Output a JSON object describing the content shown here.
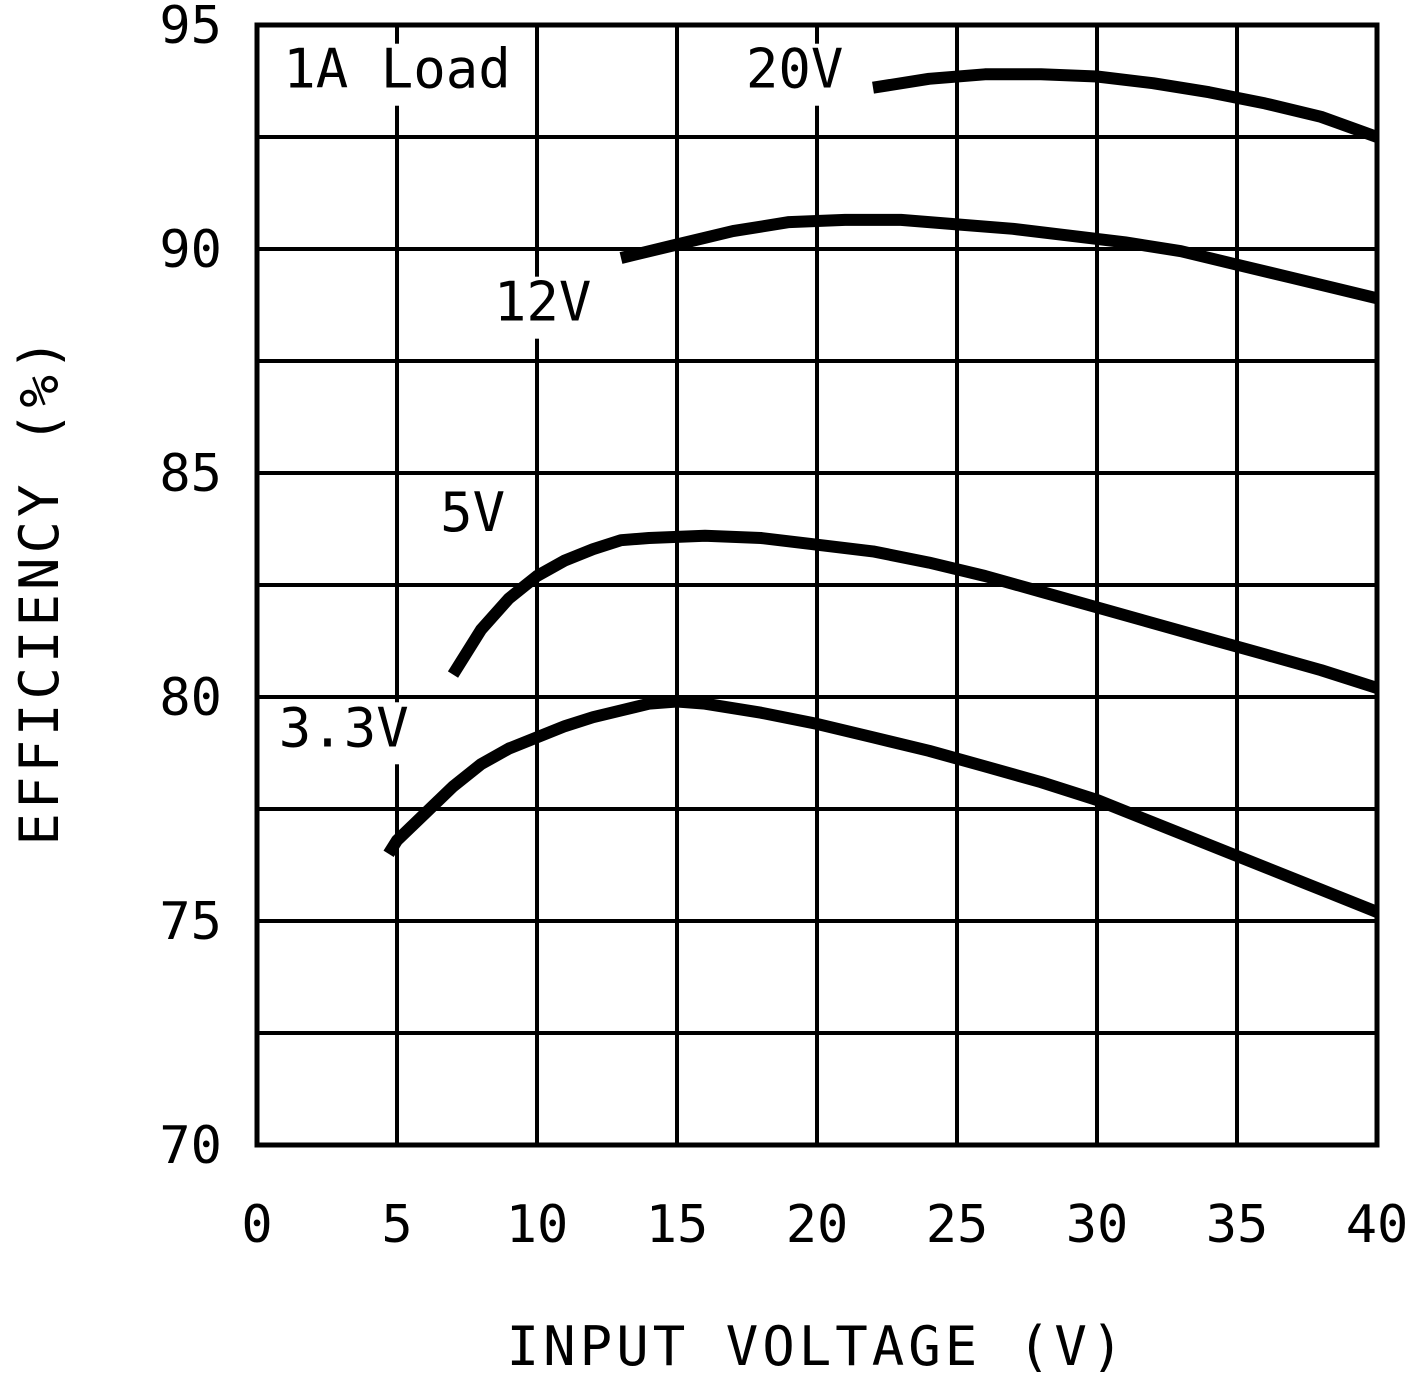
{
  "chart_data": {
    "type": "line",
    "xlabel": "INPUT VOLTAGE (V)",
    "ylabel": "EFFICIENCY (%)",
    "xlim": [
      0,
      40
    ],
    "ylim": [
      70,
      95
    ],
    "xticks": [
      0,
      5,
      10,
      15,
      20,
      25,
      30,
      35,
      40
    ],
    "yticks": [
      70,
      75,
      80,
      85,
      90,
      95
    ],
    "ygrid_step": 2.5,
    "grid": true,
    "annotations": [
      {
        "text": "1A Load",
        "x": 5,
        "y": 93.6
      },
      {
        "text": "20V",
        "x": 19.2,
        "y": 93.6
      },
      {
        "text": "12V",
        "x": 10.2,
        "y": 88.4
      },
      {
        "text": "5V",
        "x": 7.7,
        "y": 83.7
      },
      {
        "text": "3.3V",
        "x": 3.1,
        "y": 78.9
      }
    ],
    "series": [
      {
        "name": "20V",
        "x": [
          22,
          24,
          26,
          28,
          30,
          32,
          34,
          36,
          38,
          40
        ],
        "values": [
          93.6,
          93.8,
          93.9,
          93.9,
          93.85,
          93.7,
          93.5,
          93.25,
          92.95,
          92.5
        ]
      },
      {
        "name": "12V",
        "x": [
          13,
          15,
          17,
          19,
          21,
          23,
          25,
          27,
          29,
          31,
          33,
          35,
          37,
          40
        ],
        "values": [
          89.8,
          90.1,
          90.4,
          90.6,
          90.65,
          90.65,
          90.55,
          90.45,
          90.3,
          90.15,
          89.95,
          89.65,
          89.35,
          88.9
        ]
      },
      {
        "name": "5V",
        "x": [
          7,
          7.5,
          8,
          9,
          10,
          11,
          12,
          13,
          14,
          16,
          18,
          20,
          22,
          24,
          26,
          28,
          30,
          32,
          34,
          36,
          38,
          40
        ],
        "values": [
          80.5,
          81.0,
          81.5,
          82.2,
          82.7,
          83.05,
          83.3,
          83.5,
          83.55,
          83.6,
          83.55,
          83.4,
          83.25,
          83.0,
          82.7,
          82.35,
          82.0,
          81.65,
          81.3,
          80.95,
          80.6,
          80.2
        ]
      },
      {
        "name": "3.3V",
        "x": [
          4.7,
          5,
          6,
          7,
          8,
          9,
          10,
          11,
          12,
          13,
          14,
          15,
          16,
          18,
          20,
          22,
          24,
          26,
          28,
          30,
          32,
          34,
          36,
          38,
          40
        ],
        "values": [
          76.5,
          76.8,
          77.4,
          78.0,
          78.5,
          78.85,
          79.1,
          79.35,
          79.55,
          79.7,
          79.85,
          79.9,
          79.85,
          79.65,
          79.4,
          79.1,
          78.8,
          78.45,
          78.1,
          77.7,
          77.2,
          76.7,
          76.2,
          75.7,
          75.2
        ]
      }
    ]
  }
}
